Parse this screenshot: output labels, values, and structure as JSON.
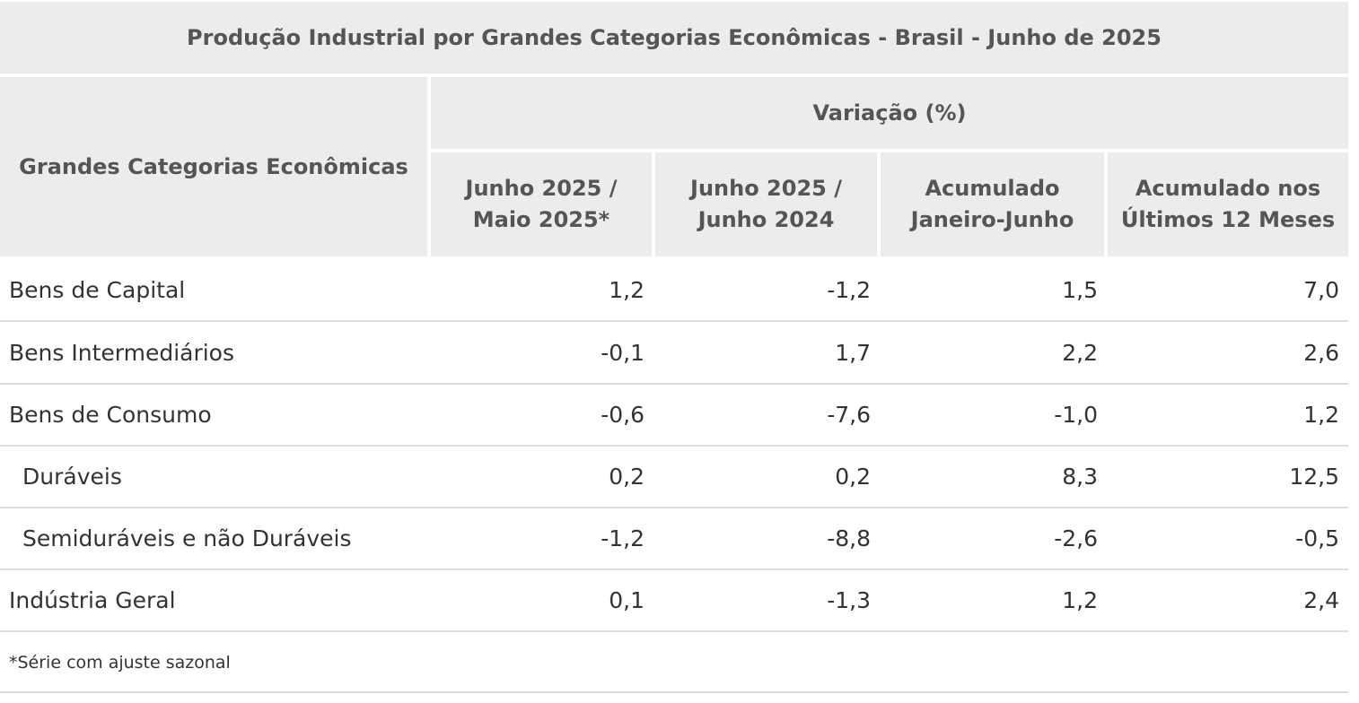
{
  "chart_data": {
    "type": "table",
    "title": "Produção Industrial por Grandes Categorias Econômicas - Brasil - Junho de 2025",
    "row_header": "Grandes Categorias Econômicas",
    "group_header": "Variação (%)",
    "columns": [
      [
        "Junho 2025 /",
        "Maio 2025*"
      ],
      [
        "Junho 2025 /",
        "Junho 2024"
      ],
      [
        "Acumulado",
        "Janeiro-Junho"
      ],
      [
        "Acumulado nos",
        "Últimos 12 Meses"
      ]
    ],
    "rows": [
      {
        "label": "Bens de Capital",
        "values": [
          "1,2",
          "-1,2",
          "1,5",
          "7,0"
        ]
      },
      {
        "label": "Bens Intermediários",
        "values": [
          "-0,1",
          "1,7",
          "2,2",
          "2,6"
        ]
      },
      {
        "label": "Bens de Consumo",
        "values": [
          "-0,6",
          "-7,6",
          "-1,0",
          "1,2"
        ]
      },
      {
        "label": "Duráveis",
        "values": [
          "0,2",
          "0,2",
          "8,3",
          "12,5"
        ]
      },
      {
        "label": "Semiduráveis e não Duráveis",
        "values": [
          "-1,2",
          "-8,8",
          "-2,6",
          "-0,5"
        ]
      },
      {
        "label": "Indústria Geral",
        "values": [
          "0,1",
          "-1,3",
          "1,2",
          "2,4"
        ]
      }
    ],
    "footnote": "*Série com ajuste sazonal"
  }
}
